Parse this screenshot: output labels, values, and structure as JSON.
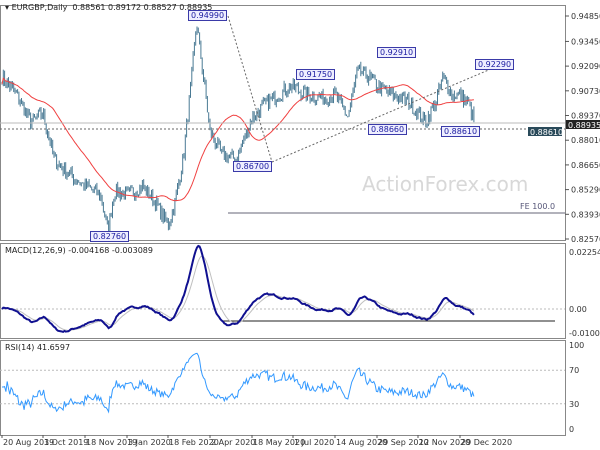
{
  "header": {
    "symbol": "EURGBP,Daily",
    "ohlc": "0.88561 0.89172 0.88527 0.88935"
  },
  "watermark": "ActionForex.com",
  "chart_data": [
    {
      "type": "candlestick-bars",
      "title": "EURGBP,Daily",
      "y_ticks": [
        "0.94850",
        "0.93450",
        "0.92090",
        "0.90730",
        "0.89370",
        "0.88010",
        "0.86650",
        "0.85290",
        "0.83930",
        "0.82570"
      ],
      "ylim": [
        0.8257,
        0.9485
      ],
      "x_ticks": [
        "20 Aug 2019",
        "3 Oct 2019",
        "18 Nov 2019",
        "3 Jan 2020",
        "18 Feb 2020",
        "2 Apr 2020",
        "18 May 2020",
        "1 Jul 2020",
        "14 Aug 2020",
        "29 Sep 2020",
        "12 Nov 2020",
        "29 Dec 2020"
      ],
      "close_approx": [
        [
          "2019-08-20",
          0.915
        ],
        [
          "2019-09-05",
          0.905
        ],
        [
          "2019-09-20",
          0.89
        ],
        [
          "2019-10-03",
          0.895
        ],
        [
          "2019-10-15",
          0.87
        ],
        [
          "2019-10-30",
          0.862
        ],
        [
          "2019-11-18",
          0.855
        ],
        [
          "2019-12-05",
          0.85
        ],
        [
          "2019-12-13",
          0.83
        ],
        [
          "2019-12-20",
          0.852
        ],
        [
          "2020-01-03",
          0.85
        ],
        [
          "2020-01-20",
          0.855
        ],
        [
          "2020-02-05",
          0.845
        ],
        [
          "2020-02-18",
          0.833
        ],
        [
          "2020-02-25",
          0.845
        ],
        [
          "2020-03-05",
          0.87
        ],
        [
          "2020-03-12",
          0.905
        ],
        [
          "2020-03-19",
          0.945
        ],
        [
          "2020-03-26",
          0.915
        ],
        [
          "2020-04-02",
          0.885
        ],
        [
          "2020-04-15",
          0.872
        ],
        [
          "2020-05-01",
          0.87
        ],
        [
          "2020-05-18",
          0.892
        ],
        [
          "2020-06-01",
          0.9
        ],
        [
          "2020-06-15",
          0.905
        ],
        [
          "2020-06-29",
          0.91
        ],
        [
          "2020-07-15",
          0.905
        ],
        [
          "2020-08-01",
          0.903
        ],
        [
          "2020-08-14",
          0.905
        ],
        [
          "2020-08-28",
          0.893
        ],
        [
          "2020-09-08",
          0.918
        ],
        [
          "2020-09-20",
          0.915
        ],
        [
          "2020-09-29",
          0.91
        ],
        [
          "2020-10-15",
          0.905
        ],
        [
          "2020-11-01",
          0.902
        ],
        [
          "2020-11-12",
          0.895
        ],
        [
          "2020-11-20",
          0.89
        ],
        [
          "2020-12-01",
          0.9
        ],
        [
          "2020-12-10",
          0.915
        ],
        [
          "2020-12-20",
          0.905
        ],
        [
          "2020-12-29",
          0.905
        ],
        [
          "2021-01-08",
          0.9
        ],
        [
          "2021-01-15",
          0.889
        ]
      ],
      "annotations": [
        "0.94990",
        "0.91750",
        "0.92910",
        "0.92290",
        "0.88660",
        "0.88610",
        "0.86700",
        "0.82760"
      ],
      "price_tags": [
        "0.88935",
        "0.88610"
      ],
      "fe_label": "FE 100.0",
      "colors": {
        "bars": "#4a7a94",
        "ma": "#f04040"
      }
    },
    {
      "type": "line",
      "title": "MACD(12,26,9) -0.004168 -0.003089",
      "y_ticks": [
        "0.022544",
        "0.00",
        "-0.010039"
      ],
      "colors": {
        "macd": "#101090",
        "signal": "#c0c0c0"
      }
    },
    {
      "type": "line",
      "title": "RSI(14) 41.6597",
      "y_ticks": [
        "100",
        "70",
        "30",
        "0"
      ],
      "levels": [
        70,
        30
      ],
      "colors": {
        "rsi": "#3399ff"
      }
    }
  ]
}
